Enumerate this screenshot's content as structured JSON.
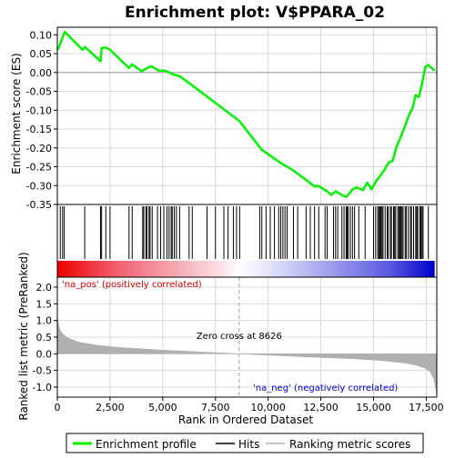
{
  "colors": {
    "enrichment_line": "#00ee00",
    "hits": "#000000",
    "metric_fill": "#b0b0b0",
    "positive_band": "#ee0000",
    "negative_band": "#0000cc",
    "label_red": "#cc0000",
    "label_blue": "#0000cc",
    "grid": "#d8d8d8",
    "zero_line": "#999999"
  },
  "chart_data": [
    {
      "type": "line",
      "panel": "enrichment",
      "title": "Enrichment plot: V$PPARA_02",
      "ylabel": "Enrichment score (ES)",
      "xlim": [
        0,
        18000
      ],
      "ylim": [
        -0.35,
        0.12
      ],
      "yticks": [
        0.1,
        0.05,
        0.0,
        -0.05,
        -0.1,
        -0.15,
        -0.2,
        -0.25,
        -0.3,
        -0.35
      ],
      "ytick_labels": [
        "0.10",
        "0.05",
        "0.00",
        "-0.05",
        "-0.10",
        "-0.15",
        "-0.20",
        "-0.25",
        "-0.30",
        "-0.35"
      ],
      "grid": true,
      "series": [
        {
          "name": "Enrichment profile",
          "x": [
            0,
            60,
            200,
            350,
            1200,
            1300,
            2050,
            2100,
            2300,
            2500,
            3400,
            3550,
            4000,
            4200,
            4450,
            4800,
            5100,
            5500,
            5800,
            6300,
            8626,
            9700,
            10600,
            11200,
            11800,
            12200,
            12350,
            12500,
            12800,
            13000,
            13200,
            13500,
            13700,
            13900,
            14000,
            14200,
            14500,
            14700,
            14900,
            15100,
            15300,
            15500,
            15700,
            15900,
            16100,
            16300,
            16500,
            16700,
            16850,
            17000,
            17150,
            17300,
            17450,
            17600,
            17900
          ],
          "y": [
            0.06,
            0.065,
            0.085,
            0.108,
            0.06,
            0.068,
            0.03,
            0.065,
            0.066,
            0.06,
            0.012,
            0.022,
            0.003,
            0.01,
            0.017,
            0.005,
            0.005,
            -0.005,
            -0.01,
            -0.03,
            -0.128,
            -0.205,
            -0.24,
            -0.26,
            -0.285,
            -0.302,
            -0.3,
            -0.305,
            -0.315,
            -0.325,
            -0.315,
            -0.325,
            -0.33,
            -0.318,
            -0.31,
            -0.305,
            -0.312,
            -0.292,
            -0.31,
            -0.29,
            -0.275,
            -0.26,
            -0.24,
            -0.235,
            -0.195,
            -0.17,
            -0.14,
            -0.11,
            -0.095,
            -0.06,
            -0.065,
            -0.03,
            0.015,
            0.02,
            0.005
          ]
        }
      ],
      "hits_x": [
        140,
        250,
        330,
        1300,
        2050,
        2100,
        2300,
        2500,
        3400,
        3550,
        4050,
        4100,
        4200,
        4250,
        4350,
        4400,
        4500,
        4750,
        4900,
        5050,
        5200,
        5300,
        5400,
        5450,
        5550,
        5650,
        5800,
        6250,
        6400,
        7100,
        7500,
        7900,
        8100,
        8350,
        8500,
        8650,
        9600,
        9700,
        9900,
        10100,
        10300,
        10500,
        10600,
        10700,
        10800,
        10900,
        11200,
        11400,
        11800,
        12000,
        12200,
        12400,
        12700,
        12800,
        13100,
        13200,
        13300,
        13500,
        13600,
        13700,
        13750,
        13800,
        13900,
        14000,
        14100,
        14300,
        14600,
        15000,
        15100,
        15200,
        15250,
        15300,
        15350,
        15400,
        15450,
        15550,
        15650,
        15700,
        15800,
        15850,
        15950,
        16000,
        16050,
        16150,
        16200,
        16250,
        16300,
        16350,
        16400,
        16500,
        16550,
        16650,
        16750,
        16800,
        16900,
        17000,
        17050,
        17100,
        17200,
        17250,
        17300,
        17350,
        17600
      ]
    },
    {
      "type": "area",
      "panel": "ranked_metric",
      "ylabel": "Ranked list metric (PreRanked)",
      "xlabel": "Rank in Ordered Dataset",
      "xlim": [
        0,
        18000
      ],
      "ylim": [
        -1.3,
        2.3
      ],
      "xticks": [
        0,
        2500,
        5000,
        7500,
        10000,
        12500,
        15000,
        17500
      ],
      "xtick_labels": [
        "0",
        "2,500",
        "5,000",
        "7,500",
        "10,000",
        "12,500",
        "15,000",
        "17,500"
      ],
      "yticks": [
        2.0,
        1.5,
        1.0,
        0.5,
        0.0,
        -0.5,
        -1.0
      ],
      "ytick_labels": [
        "2.0",
        "1.5",
        "1.0",
        "0.5",
        "0.0",
        "-0.5",
        "-1.0"
      ],
      "x": [
        0,
        30,
        100,
        250,
        500,
        1000,
        2000,
        3000,
        4000,
        5000,
        6000,
        7000,
        8000,
        8626,
        9500,
        11000,
        12500,
        14000,
        15500,
        16500,
        17000,
        17400,
        17700,
        17850,
        17950,
        18000
      ],
      "values": [
        1.15,
        1.0,
        0.75,
        0.6,
        0.48,
        0.35,
        0.25,
        0.19,
        0.15,
        0.11,
        0.08,
        0.05,
        0.02,
        0.0,
        -0.03,
        -0.07,
        -0.11,
        -0.15,
        -0.21,
        -0.28,
        -0.34,
        -0.42,
        -0.55,
        -0.75,
        -1.05,
        -1.25
      ]
    }
  ],
  "labels": {
    "na_pos": "'na_pos' (positively correlated)",
    "na_neg": "'na_neg' (negatively correlated)",
    "zero_cross": "Zero cross at 8626"
  },
  "legend": {
    "items": [
      {
        "label": "Enrichment profile",
        "color": "#00ee00"
      },
      {
        "label": "Hits",
        "color": "#000000"
      },
      {
        "label": "Ranking metric scores",
        "color": "#b0b0b0"
      }
    ]
  }
}
